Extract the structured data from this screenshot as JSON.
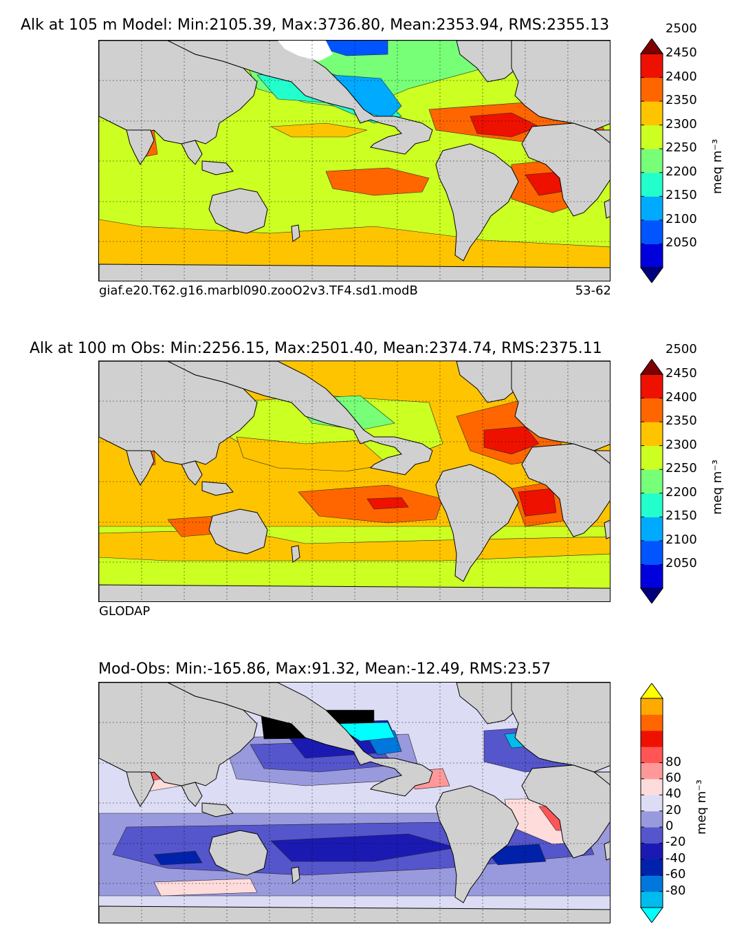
{
  "panels": [
    {
      "title": "Alk at 105 m Model: Min:2105.39, Max:3736.80, Mean:2353.94, RMS:2355.13",
      "caption_left": "giaf.e20.T62.g16.marbl090.zooO2v3.TF4.sd1.modB",
      "caption_right": "53-62",
      "colorbar": {
        "ticks": [
          "2050",
          "2100",
          "2150",
          "2200",
          "2250",
          "2300",
          "2350",
          "2400",
          "2450",
          "2500"
        ],
        "colors": [
          "#00007f",
          "#0000dd",
          "#0055ff",
          "#00aaff",
          "#22ffcc",
          "#77ff77",
          "#ccff22",
          "#ffc400",
          "#ff6600",
          "#ee1100",
          "#7f0000"
        ],
        "unit": "meq m⁻³",
        "extend": "both"
      }
    },
    {
      "title": "Alk at 100 m Obs: Min:2256.15, Max:2501.40, Mean:2374.74, RMS:2375.11",
      "caption_left": "GLODAP",
      "caption_right": "",
      "colorbar": {
        "ticks": [
          "2050",
          "2100",
          "2150",
          "2200",
          "2250",
          "2300",
          "2350",
          "2400",
          "2450",
          "2500"
        ],
        "colors": [
          "#00007f",
          "#0000dd",
          "#0055ff",
          "#00aaff",
          "#22ffcc",
          "#77ff77",
          "#ccff22",
          "#ffc400",
          "#ff6600",
          "#ee1100",
          "#7f0000"
        ],
        "unit": "meq m⁻³",
        "extend": "both"
      }
    },
    {
      "title": "Mod-Obs: Min:-165.86, Max:91.32, Mean:-12.49, RMS:23.57",
      "caption_left": "",
      "caption_right": "",
      "colorbar": {
        "ticks": [
          "-80",
          "-60",
          "-40",
          "-20",
          "0",
          "20",
          "40",
          "60",
          "80"
        ],
        "colors": [
          "#00ffff",
          "#00bbee",
          "#0077dd",
          "#0022aa",
          "#1a1ab3",
          "#5555cc",
          "#9999dd",
          "#dcdcf5",
          "#ffdcdc",
          "#ff9999",
          "#ff5555",
          "#ee1100",
          "#ff6600",
          "#ffaa00",
          "#ffff00"
        ],
        "unit": "meq m⁻³",
        "extend": "both"
      }
    }
  ]
}
